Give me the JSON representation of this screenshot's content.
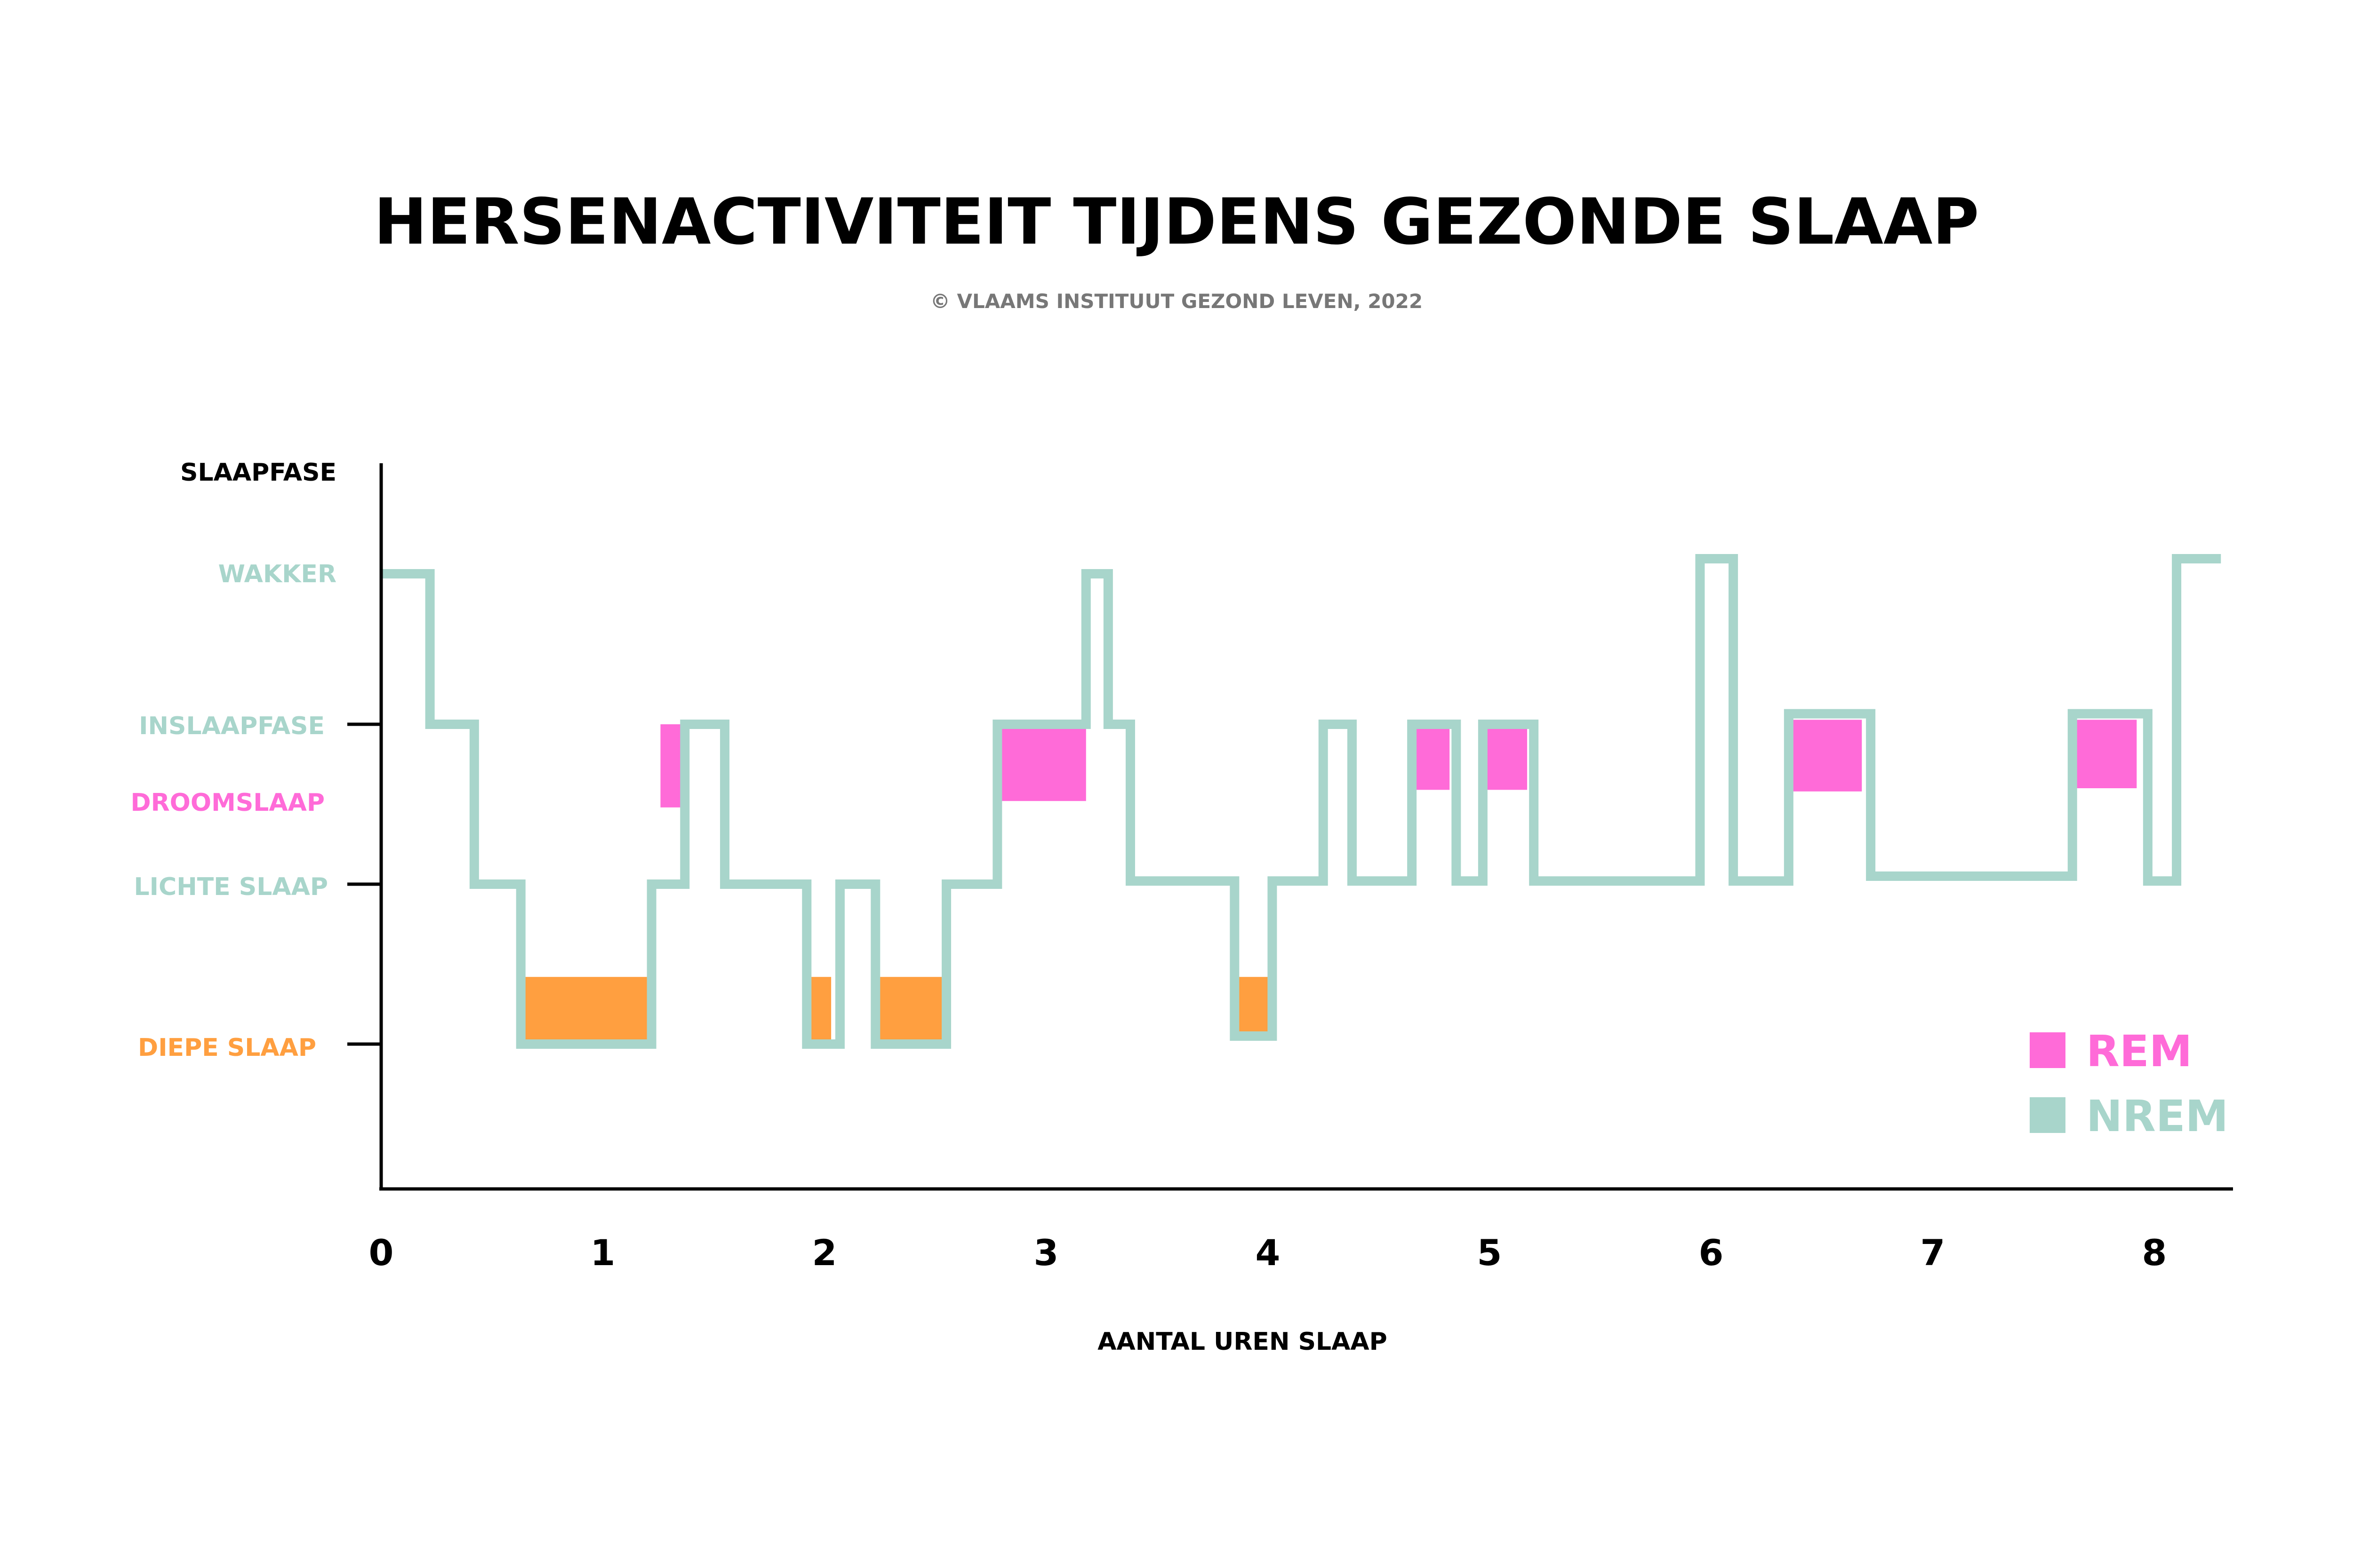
{
  "chart_data": {
    "type": "line",
    "title": "HERSENACTIVITEIT TIJDENS GEZONDE SLAAP",
    "subtitle": "© VLAAMS INSTITUUT GEZOND LEVEN, 2022",
    "ylabel": "SLAAPFASE",
    "xlabel": "AANTAL UREN SLAAP",
    "xlim": [
      0,
      8.3
    ],
    "x_ticks": [
      "0",
      "1",
      "2",
      "3",
      "4",
      "5",
      "6",
      "7",
      "8"
    ],
    "y_levels": [
      {
        "label": "WAKKER",
        "value": 4,
        "color": "#a8d5cb"
      },
      {
        "label": "INSLAAPFASE",
        "value": 3,
        "color": "#a8d5cb"
      },
      {
        "label": "DROOMSLAAP",
        "value": 2.5,
        "color": "#ff6bd8"
      },
      {
        "label": "LICHTE SLAAP",
        "value": 2,
        "color": "#a8d5cb"
      },
      {
        "label": "DIEPE SLAAP",
        "value": 1,
        "color": "#ff9f40"
      }
    ],
    "ylim": [
      0,
      5
    ],
    "nrem_line": [
      [
        0,
        4
      ],
      [
        0.22,
        4
      ],
      [
        0.22,
        3
      ],
      [
        0.42,
        3
      ],
      [
        0.42,
        2
      ],
      [
        0.63,
        2
      ],
      [
        0.63,
        1
      ],
      [
        1.22,
        1
      ],
      [
        1.22,
        2
      ],
      [
        1.37,
        2
      ],
      [
        1.37,
        3
      ],
      [
        1.55,
        3
      ],
      [
        1.55,
        2
      ],
      [
        1.92,
        2
      ],
      [
        1.92,
        1
      ],
      [
        2.07,
        1
      ],
      [
        2.07,
        2
      ],
      [
        2.23,
        2
      ],
      [
        2.23,
        1
      ],
      [
        2.55,
        1
      ],
      [
        2.55,
        2
      ],
      [
        2.78,
        2
      ],
      [
        2.78,
        3
      ],
      [
        3.18,
        3
      ],
      [
        3.18,
        4
      ],
      [
        3.28,
        4
      ],
      [
        3.28,
        3
      ],
      [
        3.38,
        3
      ],
      [
        3.38,
        2.02
      ],
      [
        3.85,
        2.02
      ],
      [
        3.85,
        1.05
      ],
      [
        4.02,
        1.05
      ],
      [
        4.02,
        2.02
      ],
      [
        4.25,
        2.02
      ],
      [
        4.25,
        3
      ],
      [
        4.38,
        3
      ],
      [
        4.38,
        2.02
      ],
      [
        4.65,
        2.02
      ],
      [
        4.65,
        3
      ],
      [
        4.85,
        3
      ],
      [
        4.85,
        2.02
      ],
      [
        4.97,
        2.02
      ],
      [
        4.97,
        3
      ],
      [
        5.2,
        3
      ],
      [
        5.2,
        2.02
      ],
      [
        5.95,
        2.02
      ],
      [
        5.95,
        4.1
      ],
      [
        6.1,
        4.1
      ],
      [
        6.1,
        2.02
      ],
      [
        6.35,
        2.02
      ],
      [
        6.35,
        3.07
      ],
      [
        6.72,
        3.07
      ],
      [
        6.72,
        2.05
      ],
      [
        7.63,
        2.05
      ],
      [
        7.63,
        3.07
      ],
      [
        7.97,
        3.07
      ],
      [
        7.97,
        2.02
      ],
      [
        8.1,
        2.02
      ],
      [
        8.1,
        4.1
      ],
      [
        8.3,
        4.1
      ]
    ],
    "rem_blocks": [
      {
        "x": [
          1.26,
          1.37
        ],
        "y": [
          2.48,
          3
        ]
      },
      {
        "x": [
          2.78,
          3.18
        ],
        "y": [
          2.52,
          3
        ]
      },
      {
        "x": [
          4.65,
          4.82
        ],
        "y": [
          2.59,
          3
        ]
      },
      {
        "x": [
          4.97,
          5.17
        ],
        "y": [
          2.59,
          3
        ]
      },
      {
        "x": [
          6.37,
          6.68
        ],
        "y": [
          2.58,
          3.03
        ]
      },
      {
        "x": [
          7.63,
          7.92
        ],
        "y": [
          2.6,
          3.03
        ]
      }
    ],
    "deep_blocks": [
      {
        "x": [
          0.63,
          1.2
        ],
        "y": [
          1,
          1.42
        ]
      },
      {
        "x": [
          1.92,
          2.03
        ],
        "y": [
          1,
          1.42
        ]
      },
      {
        "x": [
          2.23,
          2.55
        ],
        "y": [
          1,
          1.42
        ]
      },
      {
        "x": [
          3.87,
          4.0
        ],
        "y": [
          1.07,
          1.42
        ]
      }
    ],
    "legend": {
      "position": "bottom-right",
      "items": [
        {
          "label": "REM",
          "color": "#ff6bd8"
        },
        {
          "label": "NREM",
          "color": "#a8d5cb"
        }
      ]
    },
    "colors": {
      "nrem": "#a8d5cb",
      "rem": "#ff6bd8",
      "deep": "#ff9f40",
      "axis": "#000000",
      "subtitle": "#777777"
    }
  }
}
